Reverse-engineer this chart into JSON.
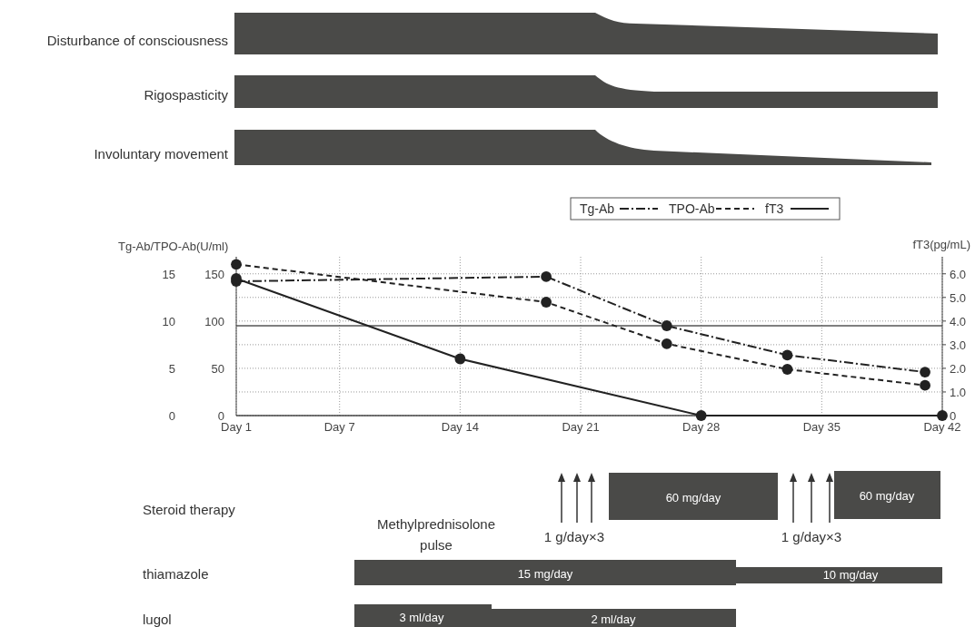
{
  "chart_data": {
    "type": "line",
    "categories": [
      "Day 1",
      null,
      null,
      null,
      null,
      null,
      "Day 7",
      null,
      null,
      null,
      null,
      null,
      null,
      "Day 14",
      null,
      null,
      null,
      null,
      null,
      null,
      "Day 21",
      null,
      null,
      null,
      null,
      null,
      null,
      "Day 28",
      null,
      null,
      null,
      null,
      null,
      null,
      "Day 35",
      null,
      null,
      null,
      null,
      null,
      null,
      "Day 42"
    ],
    "ylabel": "Tg-Ab/TPO-Ab(U/ml)",
    "ylim": [
      0,
      16.8
    ],
    "yticks": [
      0,
      5,
      10,
      15
    ],
    "y2lim": [
      0,
      168
    ],
    "y2ticks": [
      0,
      50,
      100,
      150
    ],
    "y3label": "fT3(pg/mL)",
    "y3lim": [
      0,
      6.72
    ],
    "y3ticks": [
      0,
      {
        "value": 1,
        "label": "1.0"
      },
      {
        "value": 2,
        "label": "2.0"
      },
      {
        "value": 3,
        "label": "3.0"
      },
      {
        "value": 4,
        "label": "4.0"
      },
      {
        "value": 5,
        "label": "5.0"
      },
      {
        "value": 6,
        "label": "6.0"
      }
    ],
    "grid": true,
    "legend": "top right",
    "marker": "circle",
    "ref_lines": [
      {
        "axis": "y3",
        "value": 3.8,
        "color": "#555555",
        "line_style": "solid"
      }
    ],
    "series": [
      {
        "name": "Tg-Ab",
        "color": "#222222",
        "axis": "y",
        "line_style": "dashdot",
        "values": [
          14.2,
          null,
          null,
          null,
          null,
          null,
          null,
          null,
          null,
          null,
          null,
          null,
          null,
          null,
          null,
          null,
          null,
          null,
          14.7,
          null,
          null,
          null,
          null,
          null,
          null,
          9.5,
          null,
          null,
          null,
          null,
          null,
          null,
          6.4,
          null,
          null,
          null,
          null,
          null,
          null,
          null,
          4.6,
          null
        ]
      },
      {
        "name": "TPO-Ab",
        "color": "#222222",
        "axis": "y2",
        "line_style": "dashed",
        "values": [
          160,
          null,
          null,
          null,
          null,
          null,
          null,
          null,
          null,
          null,
          null,
          null,
          null,
          null,
          null,
          null,
          null,
          null,
          120,
          null,
          null,
          null,
          null,
          null,
          null,
          76,
          null,
          null,
          null,
          null,
          null,
          null,
          49,
          null,
          null,
          null,
          null,
          null,
          null,
          null,
          32,
          null
        ]
      },
      {
        "name": "fT3",
        "color": "#222222",
        "axis": "y3",
        "line_style": "solid",
        "values": [
          5.8,
          null,
          null,
          null,
          null,
          null,
          null,
          null,
          null,
          null,
          null,
          null,
          null,
          2.4,
          null,
          null,
          null,
          null,
          null,
          null,
          null,
          null,
          null,
          null,
          null,
          null,
          null,
          0,
          null,
          null,
          null,
          null,
          null,
          null,
          null,
          null,
          null,
          null,
          null,
          null,
          null,
          0
        ]
      }
    ],
    "annotations": [
      "Disturbance of consciousness",
      "Rigospasticity",
      "Involuntary movement",
      "Steroid therapy",
      "Methylprednisolone pulse",
      "1 g/day×3",
      "60 mg/day",
      "1 g/day×3",
      "60 mg/day",
      "thiamazole",
      "15 mg/day",
      "10 mg/day",
      "lugol",
      "3 ml/day",
      "2 ml/day"
    ]
  }
}
